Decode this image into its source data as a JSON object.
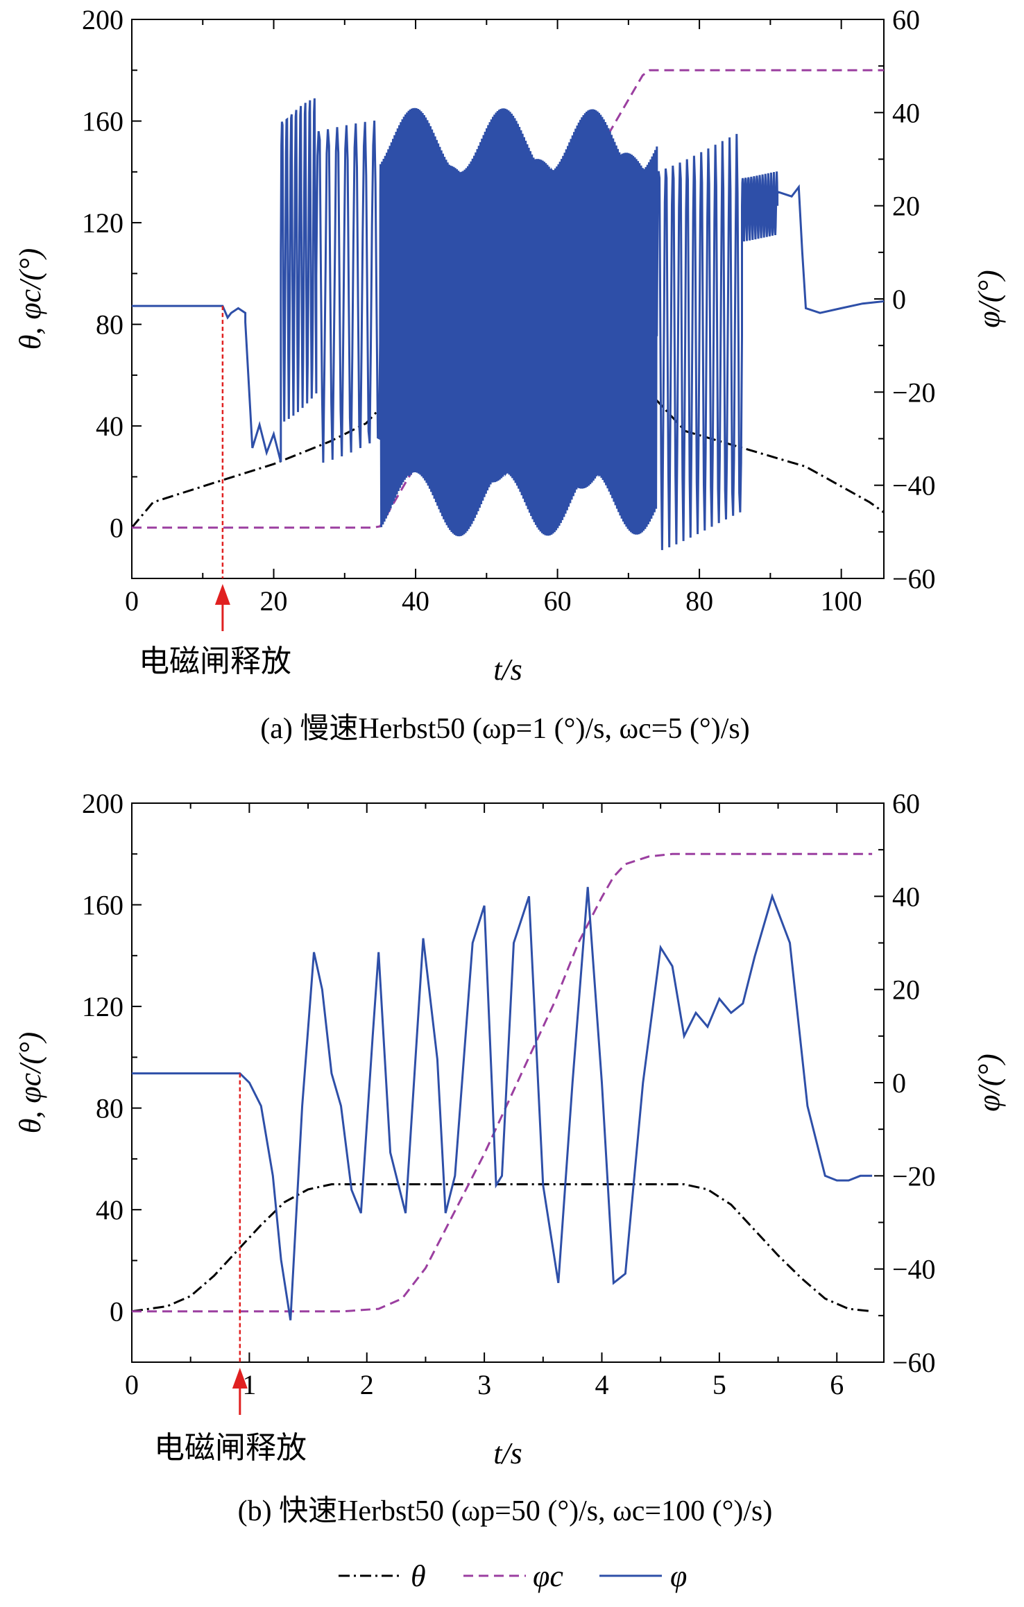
{
  "chart_data": [
    {
      "type": "line",
      "caption": "(a) 慢速Herbst50 (ωp=1 (°)/s, ωc=5 (°)/s)",
      "xlabel": "t/s",
      "ylabel_left": "θ, φc/(°)",
      "ylabel_right": "φ/(°)",
      "xlim": [
        0,
        106
      ],
      "ylim_left": [
        -20,
        200
      ],
      "ylim_right": [
        -60,
        60
      ],
      "xticks": [
        0,
        20,
        40,
        60,
        80,
        100
      ],
      "yticks_left": [
        0,
        40,
        80,
        120,
        160,
        200
      ],
      "yticks_right": [
        -60,
        -40,
        -20,
        0,
        20,
        40,
        60
      ],
      "xtick_labels": [
        "0",
        "20",
        "40",
        "60",
        "80",
        "100"
      ],
      "ytick_labels_left": [
        "0",
        "40",
        "80",
        "120",
        "160",
        "200"
      ],
      "ytick_labels_right": [
        "−60",
        "−40",
        "−20",
        "0",
        "20",
        "40",
        "60"
      ],
      "annotation": {
        "text": "电磁闸释放",
        "x": 12.8
      },
      "series": [
        {
          "name": "θ",
          "axis": "left",
          "color": "#000000",
          "style": "dashdot",
          "x": [
            0,
            3,
            12,
            20,
            28,
            33,
            36,
            55,
            74,
            78,
            95,
            104,
            106
          ],
          "y": [
            0,
            10,
            18,
            25,
            34,
            41,
            50,
            50,
            50,
            38,
            24,
            10,
            6
          ]
        },
        {
          "name": "φc",
          "axis": "left",
          "color": "#9b3fa0",
          "style": "dashed",
          "x": [
            0,
            34,
            35,
            72,
            73,
            106
          ],
          "y": [
            0,
            0,
            0.5,
            178,
            180,
            180
          ]
        },
        {
          "name": "φ",
          "axis": "right",
          "color": "#2e4fa8",
          "style": "solid",
          "segments": [
            {
              "kind": "line",
              "x": [
                0,
                12.8
              ],
              "y": [
                -1.5,
                -1.5
              ]
            },
            {
              "kind": "line",
              "x": [
                12.8,
                13.5,
                14,
                15,
                16
              ],
              "y": [
                -1.5,
                -4,
                -3,
                -2,
                -3
              ]
            },
            {
              "kind": "line",
              "x": [
                16,
                17,
                18,
                19,
                20,
                21
              ],
              "y": [
                -5,
                -32,
                -27,
                -33,
                -29,
                -35
              ]
            },
            {
              "kind": "osc",
              "x0": 21,
              "x1": 26,
              "period": 0.65,
              "center": 10,
              "amp": 38
            },
            {
              "kind": "osc",
              "x0": 26,
              "x1": 35,
              "period": 1.3,
              "center": 5,
              "amp": 42
            },
            {
              "kind": "osc",
              "x0": 35,
              "x1": 74,
              "period": 0.22,
              "center": -5,
              "amp": 46
            },
            {
              "kind": "osc",
              "x0": 74,
              "x1": 86,
              "period": 1.0,
              "center": -8,
              "amp": 48
            },
            {
              "kind": "osc",
              "x0": 86,
              "x1": 91,
              "period": 0.4,
              "center": 20,
              "amp": 8
            },
            {
              "kind": "line",
              "x": [
                91,
                93,
                94,
                94.5,
                95,
                97,
                100,
                103,
                106
              ],
              "y": [
                23,
                22,
                24,
                10,
                -2,
                -3,
                -2,
                -1,
                -0.5
              ]
            }
          ]
        }
      ]
    },
    {
      "type": "line",
      "caption": "(b) 快速Herbst50 (ωp=50 (°)/s, ωc=100 (°)/s)",
      "xlabel": "t/s",
      "ylabel_left": "θ, φc/(°)",
      "ylabel_right": "φ/(°)",
      "xlim": [
        0,
        6.4
      ],
      "ylim_left": [
        -20,
        200
      ],
      "ylim_right": [
        -60,
        60
      ],
      "xticks": [
        0,
        1,
        2,
        3,
        4,
        5,
        6
      ],
      "yticks_left": [
        0,
        40,
        80,
        120,
        160,
        200
      ],
      "yticks_right": [
        -60,
        -40,
        -20,
        0,
        20,
        40,
        60
      ],
      "xtick_labels": [
        "0",
        "1",
        "2",
        "3",
        "4",
        "5",
        "6"
      ],
      "ytick_labels_left": [
        "0",
        "40",
        "80",
        "120",
        "160",
        "200"
      ],
      "ytick_labels_right": [
        "−60",
        "−40",
        "−20",
        "0",
        "20",
        "40",
        "60"
      ],
      "annotation": {
        "text": "电磁闸释放",
        "x": 0.92
      },
      "series": [
        {
          "name": "θ",
          "axis": "left",
          "color": "#000000",
          "style": "dashdot",
          "x": [
            0,
            0.3,
            0.5,
            0.7,
            0.9,
            1.1,
            1.3,
            1.5,
            1.7,
            2.0,
            3.0,
            4.0,
            4.7,
            4.9,
            5.1,
            5.3,
            5.5,
            5.7,
            5.9,
            6.1,
            6.3
          ],
          "y": [
            0,
            2,
            6,
            14,
            24,
            34,
            43,
            48,
            50,
            50,
            50,
            50,
            50,
            48,
            42,
            32,
            22,
            13,
            5,
            1,
            0
          ]
        },
        {
          "name": "φc",
          "axis": "left",
          "color": "#9b3fa0",
          "style": "dashed",
          "x": [
            0,
            1.8,
            2.1,
            2.3,
            2.5,
            2.7,
            3.0,
            3.3,
            3.6,
            3.8,
            4.0,
            4.1,
            4.2,
            4.4,
            4.6,
            5.0,
            6.3
          ],
          "y": [
            0,
            0,
            1,
            5,
            17,
            35,
            62,
            92,
            122,
            145,
            163,
            171,
            176,
            179,
            180,
            180,
            180
          ]
        },
        {
          "name": "φ",
          "axis": "right",
          "color": "#2e4fa8",
          "style": "solid",
          "x": [
            0,
            0.92,
            1.0,
            1.1,
            1.2,
            1.27,
            1.35,
            1.45,
            1.55,
            1.62,
            1.7,
            1.78,
            1.87,
            1.95,
            2.05,
            2.1,
            2.2,
            2.33,
            2.48,
            2.6,
            2.67,
            2.75,
            2.9,
            3.0,
            3.1,
            3.15,
            3.25,
            3.38,
            3.5,
            3.63,
            3.75,
            3.88,
            4.0,
            4.1,
            4.2,
            4.35,
            4.5,
            4.6,
            4.7,
            4.8,
            4.9,
            5.0,
            5.1,
            5.2,
            5.3,
            5.45,
            5.6,
            5.75,
            5.9,
            6.0,
            6.1,
            6.2,
            6.3
          ],
          "y": [
            2,
            2,
            0,
            -5,
            -20,
            -38,
            -51,
            -5,
            28,
            20,
            2,
            -5,
            -23,
            -28,
            10,
            28,
            -15,
            -28,
            31,
            5,
            -28,
            -20,
            30,
            38,
            -22,
            -20,
            30,
            40,
            -22,
            -43,
            0,
            42,
            0,
            -43,
            -41,
            0,
            29,
            25,
            10,
            15,
            12,
            18,
            15,
            17,
            27,
            40,
            30,
            -5,
            -20,
            -21,
            -21,
            -20,
            -20
          ]
        }
      ]
    }
  ],
  "legend": {
    "items": [
      {
        "label": "θ",
        "style": "dashdot",
        "color": "#000000"
      },
      {
        "label": "φc",
        "style": "dashed",
        "color": "#9b3fa0"
      },
      {
        "label": "φ",
        "style": "solid",
        "color": "#2e4fa8"
      }
    ]
  }
}
